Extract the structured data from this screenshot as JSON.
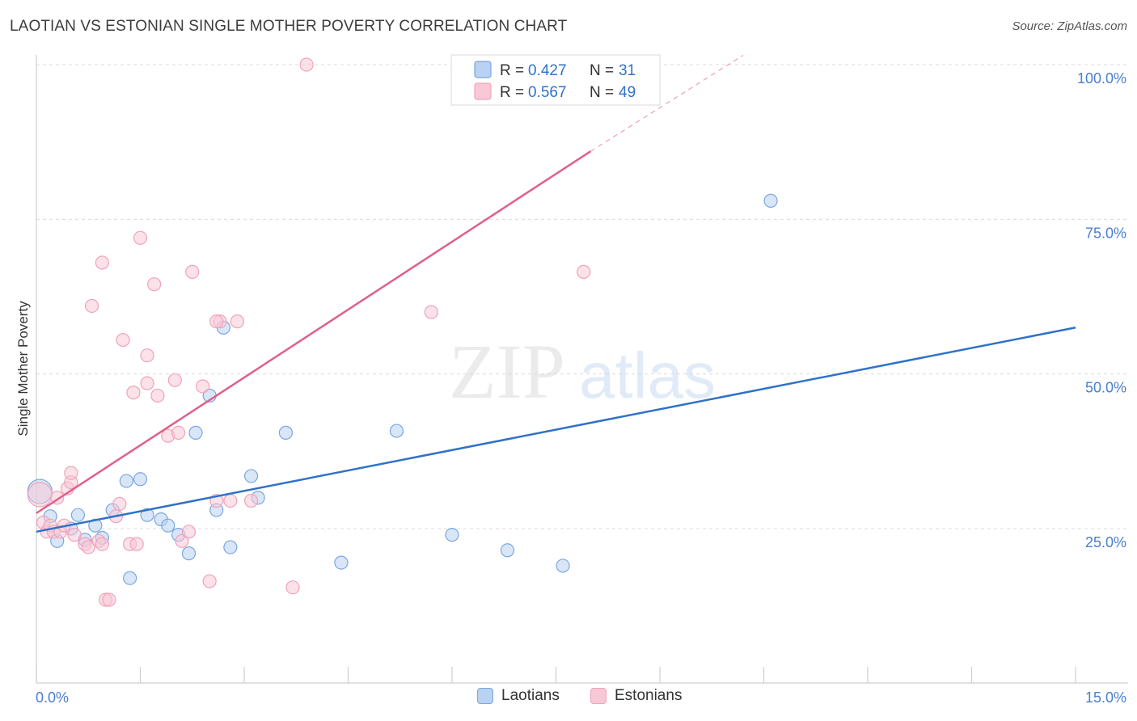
{
  "header": {
    "title": "LAOTIAN VS ESTONIAN SINGLE MOTHER POVERTY CORRELATION CHART",
    "source": "Source: ZipAtlas.com"
  },
  "watermark": {
    "zip": "ZIP",
    "atlas": "atlas"
  },
  "chart_data": {
    "type": "scatter",
    "ylabel": "Single Mother Poverty",
    "xlim": [
      0,
      15
    ],
    "ylim": [
      0,
      100
    ],
    "x_tick_labels": [
      "0.0%",
      "15.0%"
    ],
    "y_ticks": [
      25,
      50,
      75,
      100
    ],
    "y_tick_labels": [
      "25.0%",
      "50.0%",
      "75.0%",
      "100.0%"
    ],
    "grid": true,
    "legend_placement": "top-center",
    "series": [
      {
        "name": "Laotians",
        "color": "#7aa7e0",
        "fill": "#b9d1f2",
        "line_color": "#2f72c9",
        "R": "0.427",
        "N": "31",
        "trend": {
          "x": [
            0,
            15
          ],
          "y": [
            24.5,
            57.5
          ]
        },
        "points": [
          [
            0.05,
            31.0
          ],
          [
            0.2,
            27.0
          ],
          [
            0.3,
            23.0
          ],
          [
            0.5,
            25.0
          ],
          [
            0.6,
            27.2
          ],
          [
            0.7,
            23.2
          ],
          [
            0.85,
            25.5
          ],
          [
            0.95,
            23.5
          ],
          [
            1.1,
            28.0
          ],
          [
            1.3,
            32.7
          ],
          [
            1.35,
            17.0
          ],
          [
            1.5,
            33.0
          ],
          [
            1.6,
            27.2
          ],
          [
            1.8,
            26.5
          ],
          [
            1.9,
            25.5
          ],
          [
            2.05,
            24.0
          ],
          [
            2.2,
            21.0
          ],
          [
            2.3,
            40.5
          ],
          [
            2.5,
            46.5
          ],
          [
            2.6,
            28.0
          ],
          [
            2.7,
            57.5
          ],
          [
            2.8,
            22.0
          ],
          [
            3.1,
            33.5
          ],
          [
            3.2,
            30.0
          ],
          [
            3.6,
            40.5
          ],
          [
            4.4,
            19.5
          ],
          [
            5.2,
            40.8
          ],
          [
            6.0,
            24.0
          ],
          [
            6.8,
            21.5
          ],
          [
            7.6,
            19.0
          ],
          [
            10.6,
            78.0
          ]
        ]
      },
      {
        "name": "Estonians",
        "color": "#f0a3bb",
        "fill": "#f8c8d6",
        "line_color": "#e0608a",
        "R": "0.567",
        "N": "49",
        "trend": {
          "x": [
            0,
            8.0
          ],
          "y": [
            27.5,
            86.0
          ]
        },
        "trend_ext": {
          "x": [
            8.0,
            10.2
          ],
          "y": [
            86.0,
            101.5
          ]
        },
        "points": [
          [
            0.05,
            30.5
          ],
          [
            0.1,
            26.0
          ],
          [
            0.15,
            24.5
          ],
          [
            0.2,
            25.5
          ],
          [
            0.25,
            24.5
          ],
          [
            0.3,
            30.0
          ],
          [
            0.35,
            24.5
          ],
          [
            0.4,
            25.5
          ],
          [
            0.45,
            31.5
          ],
          [
            0.5,
            32.5
          ],
          [
            0.5,
            34.0
          ],
          [
            0.55,
            24.0
          ],
          [
            0.7,
            22.5
          ],
          [
            0.75,
            22.0
          ],
          [
            0.8,
            61.0
          ],
          [
            0.9,
            23.0
          ],
          [
            0.95,
            22.5
          ],
          [
            0.95,
            68.0
          ],
          [
            1.0,
            13.5
          ],
          [
            1.05,
            13.5
          ],
          [
            1.15,
            27.0
          ],
          [
            1.2,
            29.0
          ],
          [
            1.25,
            55.5
          ],
          [
            1.35,
            22.5
          ],
          [
            1.4,
            47.0
          ],
          [
            1.5,
            72.0
          ],
          [
            1.6,
            48.5
          ],
          [
            1.6,
            53.0
          ],
          [
            1.7,
            64.5
          ],
          [
            1.75,
            46.5
          ],
          [
            1.9,
            40.0
          ],
          [
            2.0,
            49.0
          ],
          [
            2.05,
            40.5
          ],
          [
            2.1,
            23.0
          ],
          [
            2.2,
            24.5
          ],
          [
            2.25,
            66.5
          ],
          [
            2.4,
            48.0
          ],
          [
            2.5,
            16.5
          ],
          [
            2.6,
            29.5
          ],
          [
            2.65,
            58.5
          ],
          [
            2.8,
            29.5
          ],
          [
            2.9,
            58.5
          ],
          [
            3.1,
            29.5
          ],
          [
            3.7,
            15.5
          ],
          [
            3.9,
            100.0
          ],
          [
            5.7,
            60.0
          ],
          [
            7.9,
            66.5
          ],
          [
            2.6,
            58.5
          ],
          [
            1.45,
            22.5
          ]
        ]
      }
    ]
  }
}
